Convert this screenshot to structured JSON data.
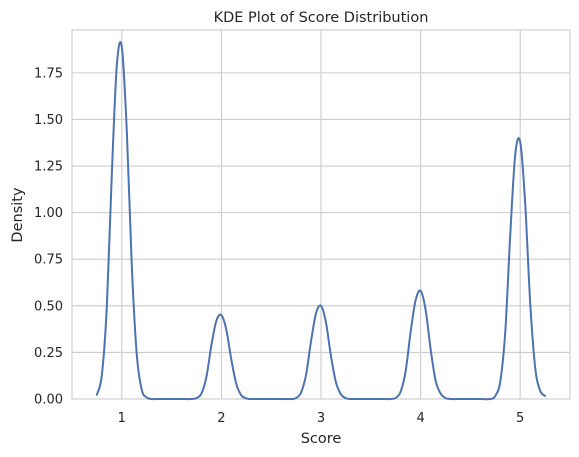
{
  "chart_data": {
    "type": "line",
    "title": "KDE Plot of Score Distribution",
    "xlabel": "Score",
    "ylabel": "Density",
    "xlim": [
      0.5,
      5.5
    ],
    "ylim": [
      0,
      1.98
    ],
    "xticks": [
      1,
      2,
      3,
      4,
      5
    ],
    "xtick_labels": [
      "1",
      "2",
      "3",
      "4",
      "5"
    ],
    "yticks": [
      0,
      0.25,
      0.5,
      0.75,
      1.0,
      1.25,
      1.5,
      1.75
    ],
    "ytick_labels": [
      "0.00",
      "0.25",
      "0.50",
      "0.75",
      "1.00",
      "1.25",
      "1.50",
      "1.75"
    ],
    "grid": true,
    "series": [
      {
        "color": "#4c72b0",
        "x": [
          0.75,
          0.8,
          0.85,
          0.9,
          0.95,
          1.0,
          1.05,
          1.1,
          1.15,
          1.2,
          1.25,
          1.3,
          1.4,
          1.5,
          1.6,
          1.7,
          1.75,
          1.8,
          1.85,
          1.9,
          1.95,
          2.0,
          2.05,
          2.1,
          2.15,
          2.2,
          2.25,
          2.3,
          2.4,
          2.5,
          2.6,
          2.7,
          2.75,
          2.8,
          2.85,
          2.9,
          2.95,
          3.0,
          3.05,
          3.1,
          3.15,
          3.2,
          3.25,
          3.3,
          3.4,
          3.5,
          3.6,
          3.7,
          3.75,
          3.8,
          3.85,
          3.9,
          3.95,
          4.0,
          4.05,
          4.1,
          4.15,
          4.2,
          4.25,
          4.3,
          4.4,
          4.5,
          4.6,
          4.7,
          4.75,
          4.8,
          4.85,
          4.9,
          4.95,
          5.0,
          5.05,
          5.1,
          5.15,
          5.2,
          5.25
        ],
        "y": [
          0.023,
          0.13,
          0.5,
          1.21,
          1.79,
          1.89,
          1.44,
          0.72,
          0.24,
          0.05,
          0.008,
          0.0,
          0.0,
          0.0,
          0.0,
          0.0,
          0.005,
          0.03,
          0.12,
          0.29,
          0.42,
          0.45,
          0.37,
          0.21,
          0.08,
          0.02,
          0.003,
          0.0,
          0.0,
          0.0,
          0.0,
          0.0,
          0.005,
          0.035,
          0.13,
          0.31,
          0.46,
          0.5,
          0.41,
          0.23,
          0.09,
          0.025,
          0.004,
          0.0,
          0.0,
          0.0,
          0.0,
          0.0,
          0.006,
          0.04,
          0.15,
          0.36,
          0.53,
          0.58,
          0.48,
          0.27,
          0.1,
          0.03,
          0.005,
          0.0,
          0.0,
          0.0,
          0.0,
          0.0,
          0.017,
          0.095,
          0.36,
          0.88,
          1.31,
          1.38,
          1.05,
          0.52,
          0.17,
          0.045,
          0.017
        ]
      }
    ]
  }
}
